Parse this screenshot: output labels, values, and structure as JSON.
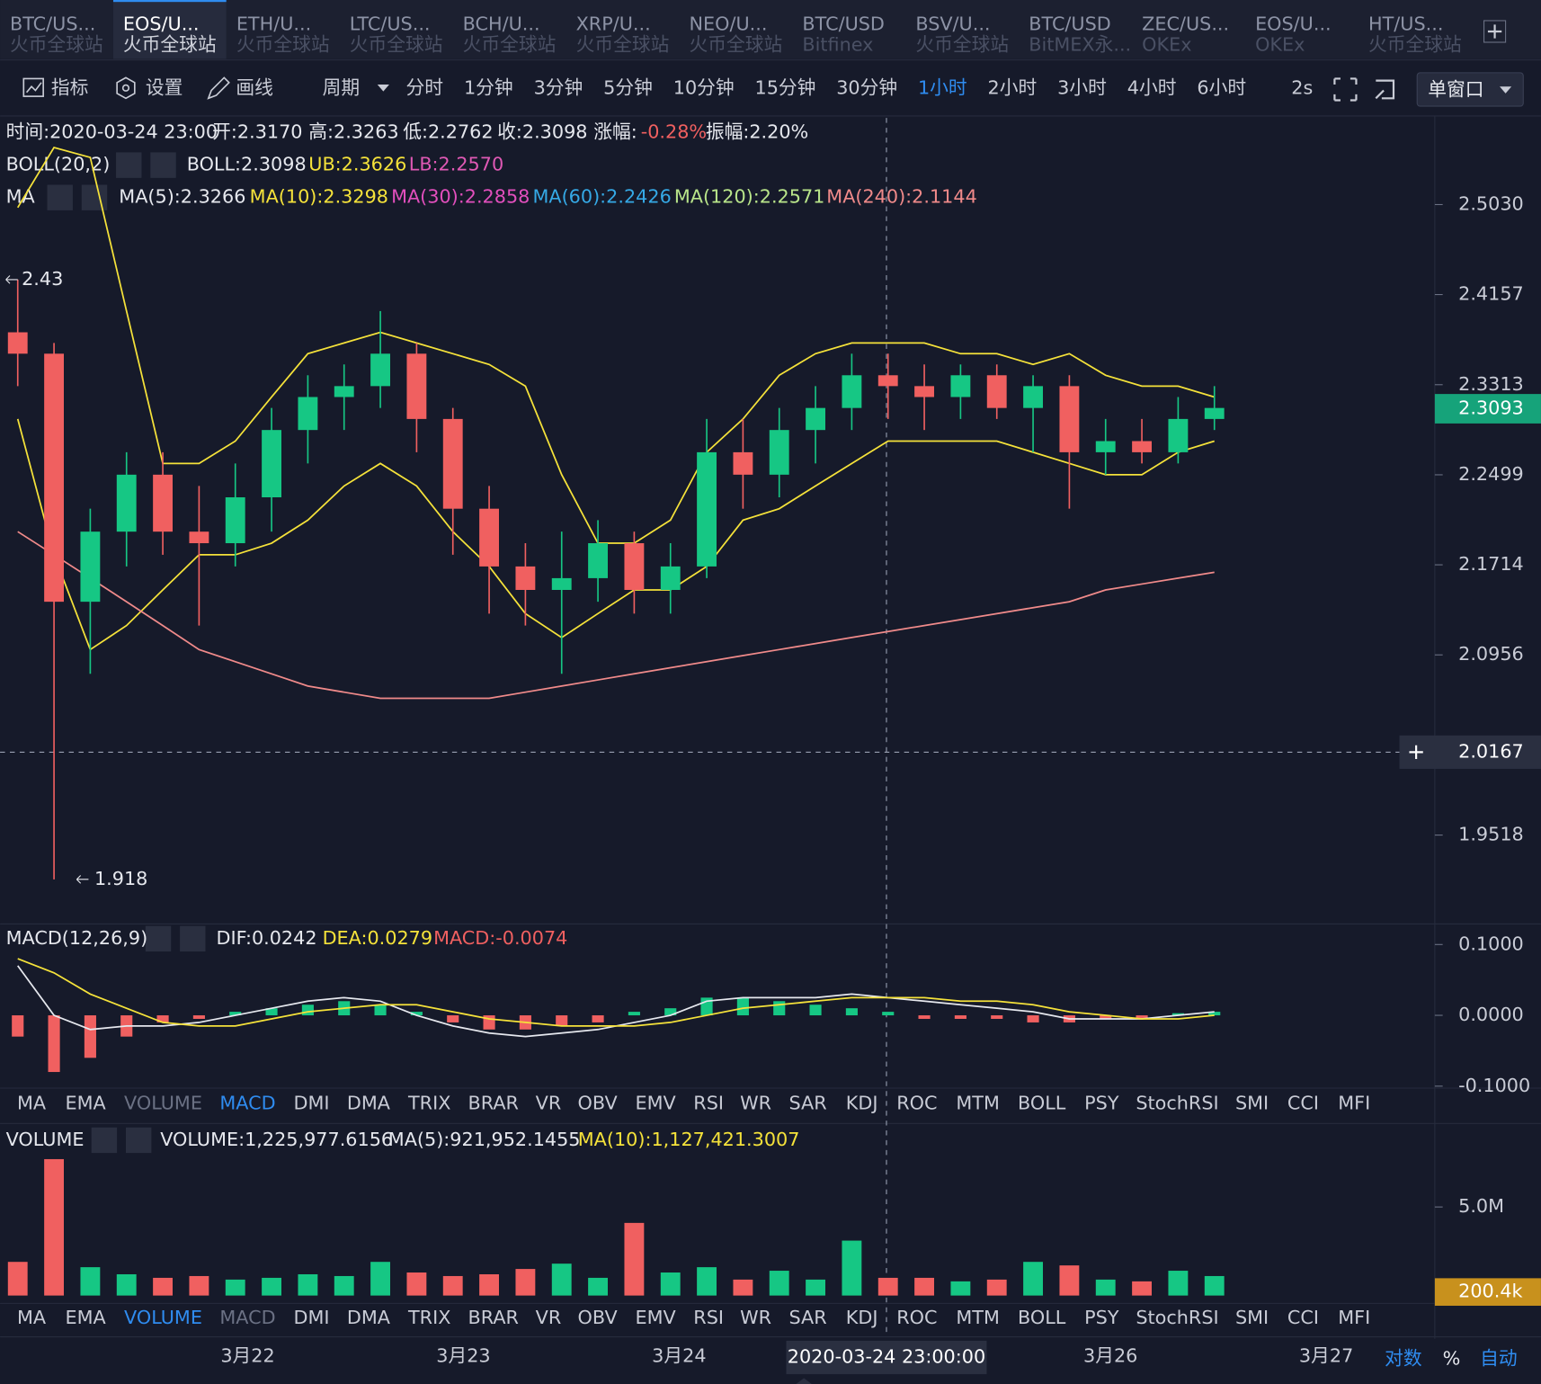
{
  "tabs": [
    {
      "pair": "BTC/US...",
      "exchange": "火币全球站"
    },
    {
      "pair": "EOS/U...",
      "exchange": "火币全球站",
      "active": true
    },
    {
      "pair": "ETH/U...",
      "exchange": "火币全球站"
    },
    {
      "pair": "LTC/US...",
      "exchange": "火币全球站"
    },
    {
      "pair": "BCH/U...",
      "exchange": "火币全球站"
    },
    {
      "pair": "XRP/U...",
      "exchange": "火币全球站"
    },
    {
      "pair": "NEO/U...",
      "exchange": "火币全球站"
    },
    {
      "pair": "BTC/USD",
      "exchange": "Bitfinex"
    },
    {
      "pair": "BSV/U...",
      "exchange": "火币全球站"
    },
    {
      "pair": "BTC/USD",
      "exchange": "BitMEX永..."
    },
    {
      "pair": "ZEC/US...",
      "exchange": "OKEx"
    },
    {
      "pair": "EOS/U...",
      "exchange": "OKEx"
    },
    {
      "pair": "HT/US...",
      "exchange": "火币全球站"
    }
  ],
  "toolbar": {
    "tools": [
      "指标",
      "设置",
      "画线"
    ],
    "period_label": "周期",
    "periods": [
      {
        "label": "分时"
      },
      {
        "label": "1分钟"
      },
      {
        "label": "3分钟"
      },
      {
        "label": "5分钟"
      },
      {
        "label": "10分钟"
      },
      {
        "label": "15分钟"
      },
      {
        "label": "30分钟"
      },
      {
        "label": "1小时",
        "active": true
      },
      {
        "label": "2小时"
      },
      {
        "label": "3小时"
      },
      {
        "label": "4小时"
      },
      {
        "label": "6小时"
      }
    ],
    "refresh": "2s",
    "window": "单窗口"
  },
  "info": {
    "ohlc": [
      {
        "text": "时间:2020-03-24 23:00",
        "color": "#e6e8ee"
      },
      {
        "text": "开:2.3170",
        "color": "#e6e8ee"
      },
      {
        "text": "高:2.3263",
        "color": "#e6e8ee"
      },
      {
        "text": "低:2.2762",
        "color": "#e6e8ee"
      },
      {
        "text": "收:2.3098",
        "color": "#e6e8ee"
      },
      {
        "text": "涨幅:",
        "color": "#e6e8ee"
      },
      {
        "text": "-0.28%",
        "color": "#f06060"
      },
      {
        "text": "振幅:2.20%",
        "color": "#e6e8ee"
      }
    ],
    "boll": [
      {
        "text": "BOLL(20,2)",
        "color": "#e6e8ee"
      },
      {
        "text": "BOLL:2.3098",
        "color": "#e6e8ee"
      },
      {
        "text": "UB:2.3626",
        "color": "#f5e23a"
      },
      {
        "text": "LB:2.2570",
        "color": "#e059b5"
      }
    ],
    "ma": [
      {
        "text": "MA",
        "color": "#e6e8ee"
      },
      {
        "text": "MA(5):2.3266",
        "color": "#e6e8ee"
      },
      {
        "text": "MA(10):2.3298",
        "color": "#f5e23a"
      },
      {
        "text": "MA(30):2.2858",
        "color": "#e24fbd"
      },
      {
        "text": "MA(60):2.2426",
        "color": "#35a9e6"
      },
      {
        "text": "MA(120):2.2571",
        "color": "#b9e58a"
      },
      {
        "text": "MA(240):2.1144",
        "color": "#f08a8a"
      }
    ],
    "macd": [
      {
        "text": "MACD(12,26,9)",
        "color": "#e6e8ee"
      },
      {
        "text": "DIF:0.0242",
        "color": "#e6e8ee"
      },
      {
        "text": "DEA:0.0279",
        "color": "#f5e23a"
      },
      {
        "text": "MACD:-0.0074",
        "color": "#f06060"
      }
    ],
    "volume": [
      {
        "text": "VOLUME",
        "color": "#e6e8ee"
      },
      {
        "text": "VOLUME:1,225,977.6156",
        "color": "#e6e8ee"
      },
      {
        "text": "MA(5):921,952.1455",
        "color": "#e6e8ee"
      },
      {
        "text": "MA(10):1,127,421.3007",
        "color": "#f5e23a"
      }
    ]
  },
  "indicator_tabs": [
    "MA",
    "EMA",
    "VOLUME",
    "MACD",
    "DMI",
    "DMA",
    "TRIX",
    "BRAR",
    "VR",
    "OBV",
    "EMV",
    "RSI",
    "WR",
    "SAR",
    "KDJ",
    "ROC",
    "MTM",
    "BOLL",
    "PSY",
    "StochRSI",
    "SMI",
    "CCI",
    "MFI"
  ],
  "indicator_rows": [
    {
      "active": 3,
      "muted": [
        2
      ]
    },
    {
      "active": 2,
      "muted": [
        3
      ]
    }
  ],
  "chart_data": [
    {
      "type": "candlestick",
      "log_scale": true,
      "up_color": "#16c784",
      "down_color": "#f06060",
      "open": [
        2.38,
        2.36,
        2.14,
        2.2,
        2.25,
        2.2,
        2.19,
        2.23,
        2.29,
        2.32,
        2.33,
        2.36,
        2.3,
        2.22,
        2.17,
        2.15,
        2.16,
        2.19,
        2.15,
        2.17,
        2.27,
        2.25,
        2.29,
        2.31,
        2.34,
        2.33,
        2.32,
        2.34,
        2.31,
        2.33,
        2.27,
        2.28,
        2.27,
        2.3
      ],
      "high": [
        2.43,
        2.37,
        2.22,
        2.27,
        2.27,
        2.24,
        2.26,
        2.31,
        2.34,
        2.35,
        2.4,
        2.37,
        2.31,
        2.24,
        2.19,
        2.2,
        2.21,
        2.2,
        2.19,
        2.3,
        2.3,
        2.31,
        2.33,
        2.36,
        2.36,
        2.35,
        2.35,
        2.35,
        2.34,
        2.34,
        2.3,
        2.3,
        2.32,
        2.33
      ],
      "low": [
        2.33,
        1.918,
        2.08,
        2.17,
        2.18,
        2.12,
        2.17,
        2.2,
        2.26,
        2.29,
        2.31,
        2.27,
        2.18,
        2.13,
        2.12,
        2.08,
        2.14,
        2.13,
        2.13,
        2.16,
        2.22,
        2.23,
        2.26,
        2.29,
        2.3,
        2.29,
        2.3,
        2.3,
        2.27,
        2.22,
        2.25,
        2.26,
        2.26,
        2.29
      ],
      "close": [
        2.36,
        2.14,
        2.2,
        2.25,
        2.2,
        2.19,
        2.23,
        2.29,
        2.32,
        2.33,
        2.36,
        2.3,
        2.22,
        2.17,
        2.15,
        2.16,
        2.19,
        2.15,
        2.17,
        2.27,
        2.25,
        2.29,
        2.31,
        2.34,
        2.33,
        2.32,
        2.34,
        2.31,
        2.33,
        2.27,
        2.28,
        2.27,
        2.3,
        2.31
      ],
      "series": [
        {
          "color": "#f5e23a",
          "values": [
            2.5,
            2.56,
            2.55,
            2.4,
            2.26,
            2.26,
            2.28,
            2.32,
            2.36,
            2.37,
            2.38,
            2.37,
            2.36,
            2.35,
            2.33,
            2.25,
            2.19,
            2.19,
            2.21,
            2.27,
            2.3,
            2.34,
            2.36,
            2.37,
            2.37,
            2.37,
            2.36,
            2.36,
            2.35,
            2.36,
            2.34,
            2.33,
            2.33,
            2.32
          ]
        },
        {
          "color": "#f5e23a",
          "values": [
            2.3,
            2.18,
            2.1,
            2.12,
            2.15,
            2.18,
            2.18,
            2.19,
            2.21,
            2.24,
            2.26,
            2.24,
            2.2,
            2.17,
            2.13,
            2.11,
            2.13,
            2.15,
            2.15,
            2.17,
            2.21,
            2.22,
            2.24,
            2.26,
            2.28,
            2.28,
            2.28,
            2.28,
            2.27,
            2.26,
            2.25,
            2.25,
            2.27,
            2.28
          ]
        },
        {
          "color": "#f08a8a",
          "values": [
            2.2,
            2.18,
            2.16,
            2.14,
            2.12,
            2.1,
            2.09,
            2.08,
            2.07,
            2.065,
            2.06,
            2.06,
            2.06,
            2.06,
            2.065,
            2.07,
            2.075,
            2.08,
            2.085,
            2.09,
            2.095,
            2.1,
            2.105,
            2.11,
            2.115,
            2.12,
            2.125,
            2.13,
            2.135,
            2.14,
            2.15,
            2.155,
            2.16,
            2.165
          ]
        }
      ],
      "ylim": [
        1.886,
        2.59
      ],
      "yticks": [
        {
          "value": 2.503,
          "label": "2.5030"
        },
        {
          "value": 2.4157,
          "label": "2.4157"
        },
        {
          "value": 2.3313,
          "label": "2.3313"
        },
        {
          "value": 2.2499,
          "label": "2.2499"
        },
        {
          "value": 2.1714,
          "label": "2.1714"
        },
        {
          "value": 2.0956,
          "label": "2.0956"
        },
        {
          "value": 1.9518,
          "label": "1.9518"
        }
      ],
      "max_label": 2.43,
      "min_label": 1.918,
      "last_price": 2.3093,
      "crosshair_price": 2.0167,
      "crosshair_time": "2020-03-24 23:00:00",
      "x_labels": [
        "3月22",
        "3月23",
        "3月24",
        null,
        "3月26",
        "3月27"
      ]
    },
    {
      "type": "macd",
      "histogram": [
        -0.03,
        -0.08,
        -0.06,
        -0.03,
        -0.01,
        -0.005,
        0.005,
        0.01,
        0.015,
        0.02,
        0.015,
        0.005,
        -0.01,
        -0.02,
        -0.02,
        -0.015,
        -0.01,
        0.005,
        0.01,
        0.025,
        0.025,
        0.02,
        0.015,
        0.01,
        0.005,
        -0.005,
        -0.005,
        -0.005,
        -0.01,
        -0.01,
        -0.005,
        -0.005,
        0.003,
        0.005
      ],
      "series": [
        {
          "color": "#e6e8ee",
          "values": [
            0.07,
            0.0,
            -0.02,
            -0.015,
            -0.015,
            -0.01,
            0.0,
            0.01,
            0.02,
            0.025,
            0.02,
            0.0,
            -0.015,
            -0.025,
            -0.03,
            -0.025,
            -0.02,
            -0.01,
            0.0,
            0.02,
            0.025,
            0.025,
            0.025,
            0.03,
            0.025,
            0.02,
            0.015,
            0.01,
            0.005,
            -0.005,
            -0.005,
            -0.005,
            0.0,
            0.005
          ]
        },
        {
          "color": "#f5e23a",
          "values": [
            0.08,
            0.06,
            0.03,
            0.01,
            -0.01,
            -0.015,
            -0.015,
            -0.005,
            0.005,
            0.01,
            0.015,
            0.015,
            0.005,
            -0.005,
            -0.01,
            -0.015,
            -0.015,
            -0.015,
            -0.01,
            0.0,
            0.01,
            0.015,
            0.02,
            0.025,
            0.025,
            0.025,
            0.02,
            0.02,
            0.015,
            0.005,
            0.0,
            -0.005,
            -0.005,
            0.0
          ]
        }
      ],
      "ylim": [
        -0.1014,
        0.129
      ],
      "yticks": [
        {
          "value": 0.1,
          "label": "0.1000"
        },
        {
          "value": 0,
          "label": "0.0000"
        },
        {
          "value": -0.1,
          "label": "-0.1000"
        }
      ]
    },
    {
      "type": "volume",
      "values": [
        1900000,
        7700000,
        1600000,
        1200000,
        1000000,
        1100000,
        900000,
        1000000,
        1200000,
        1100000,
        1900000,
        1300000,
        1100000,
        1200000,
        1500000,
        1800000,
        1000000,
        4100000,
        1300000,
        1600000,
        900000,
        1400000,
        900000,
        3100000,
        1000000,
        1000000,
        800000,
        900000,
        1900000,
        1700000,
        900000,
        800000,
        1400000,
        1100000
      ],
      "ylim": [
        0,
        9600000
      ],
      "yticks": [
        {
          "value": 5000000,
          "label": "5.0M"
        }
      ],
      "last_volume": {
        "value": 200400,
        "label": "200.4k"
      }
    }
  ],
  "axis_options": [
    "对数",
    "%",
    "自动"
  ]
}
